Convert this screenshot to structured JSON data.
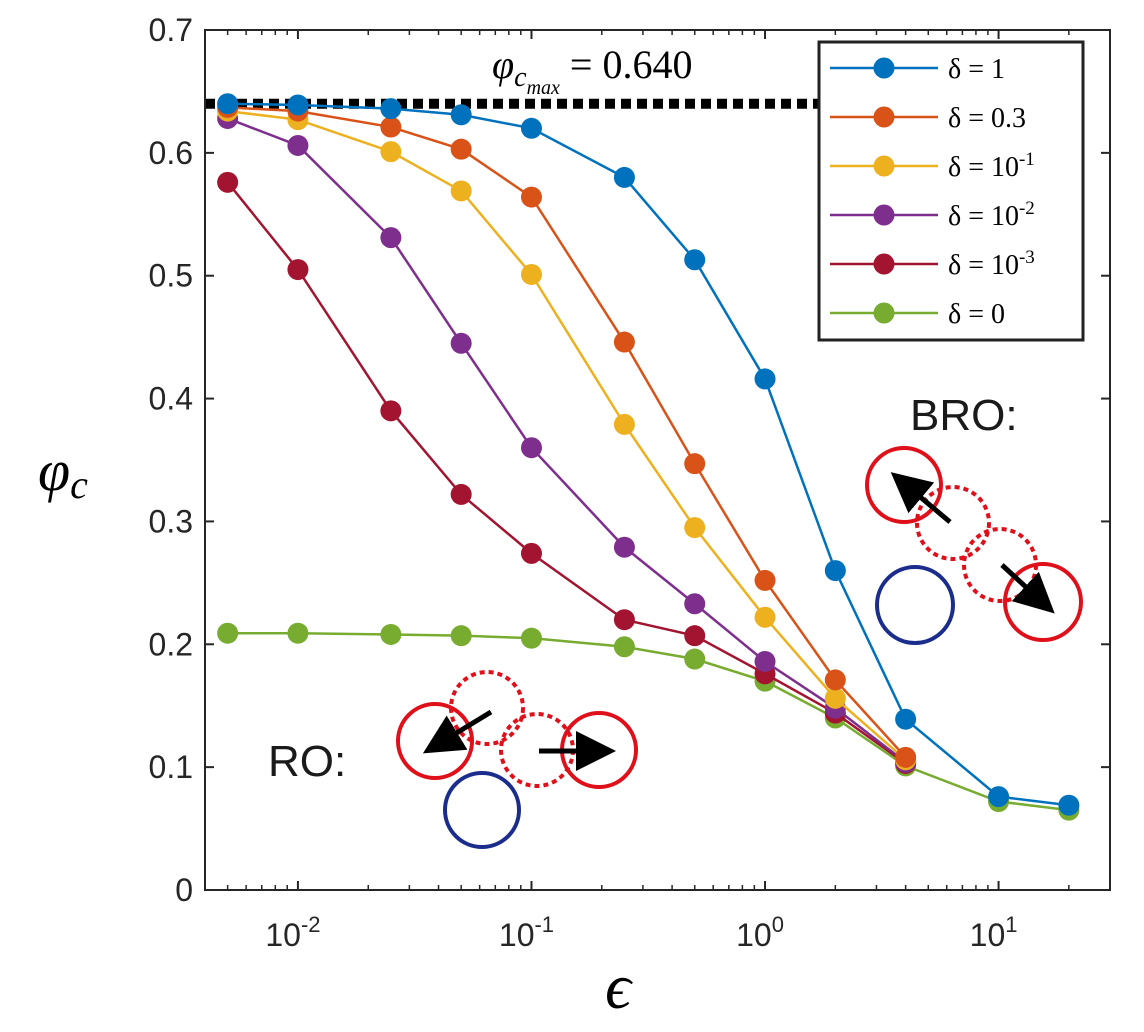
{
  "chart_data": {
    "type": "line",
    "xlabel": "ϵ",
    "ylabel": "φ",
    "ylabel_sub": "c",
    "x_scale": "log",
    "xlim": [
      0.004,
      30
    ],
    "ylim": [
      0,
      0.7
    ],
    "x_ticks": [
      {
        "value": 0.01,
        "base": "10",
        "exp": "-2"
      },
      {
        "value": 0.1,
        "base": "10",
        "exp": "-1"
      },
      {
        "value": 1,
        "base": "10",
        "exp": "0"
      },
      {
        "value": 10,
        "base": "10",
        "exp": "1"
      }
    ],
    "y_ticks": [
      "0",
      "0.1",
      "0.2",
      "0.3",
      "0.4",
      "0.5",
      "0.6",
      "0.7"
    ],
    "grid": false,
    "legend_position": "top-right",
    "x": [
      0.005,
      0.01,
      0.025,
      0.05,
      0.1,
      0.25,
      0.5,
      1,
      2,
      4,
      10,
      20
    ],
    "series": [
      {
        "name": "δ = 1",
        "label_base": "δ = 1",
        "label_exp": "",
        "color": "#0072BD",
        "values": [
          0.64,
          0.639,
          0.636,
          0.631,
          0.62,
          0.58,
          0.513,
          0.416,
          0.26,
          0.139,
          0.076,
          0.069
        ]
      },
      {
        "name": "δ = 0.3",
        "label_base": "δ = 0.3",
        "label_exp": "",
        "color": "#D95319",
        "values": [
          0.637,
          0.634,
          0.621,
          0.603,
          0.564,
          0.446,
          0.347,
          0.252,
          0.171,
          0.108,
          null,
          null
        ]
      },
      {
        "name": "δ = 10-1",
        "label_base": "δ = 10",
        "label_exp": "-1",
        "color": "#EDB120",
        "values": [
          0.634,
          0.627,
          0.601,
          0.569,
          0.501,
          0.379,
          0.295,
          0.222,
          0.156,
          0.106,
          null,
          null
        ]
      },
      {
        "name": "δ = 10-2",
        "label_base": "δ = 10",
        "label_exp": "-2",
        "color": "#7E2F8E",
        "values": [
          0.628,
          0.606,
          0.531,
          0.445,
          0.36,
          0.279,
          0.233,
          0.186,
          0.148,
          0.104,
          null,
          null
        ]
      },
      {
        "name": "δ = 10-3",
        "label_base": "δ = 10",
        "label_exp": "-3",
        "color": "#A2142F",
        "values": [
          0.576,
          0.505,
          0.39,
          0.322,
          0.274,
          0.22,
          0.207,
          0.176,
          0.144,
          0.103,
          null,
          null
        ]
      },
      {
        "name": "δ = 0",
        "label_base": "δ = 0",
        "label_exp": "",
        "color": "#77AC30",
        "values": [
          0.209,
          0.209,
          0.208,
          0.207,
          0.205,
          0.198,
          0.188,
          0.17,
          0.14,
          0.101,
          0.072,
          0.065
        ]
      }
    ],
    "reference_line": {
      "value": 0.64,
      "label_main": "φ",
      "label_sub": "c",
      "label_subsub": "max",
      "label_rest": " = 0.640"
    },
    "annotations": {
      "bro_label": "BRO:",
      "ro_label": "RO:"
    }
  },
  "colors": {
    "particle_red": "#E0101A",
    "particle_blue": "#1B2D8C",
    "arrow": "#000000",
    "axis": "#262626"
  }
}
